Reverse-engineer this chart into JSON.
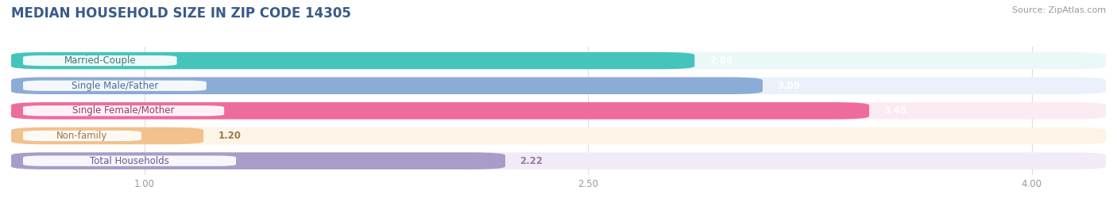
{
  "title": "MEDIAN HOUSEHOLD SIZE IN ZIP CODE 14305",
  "source": "Source: ZipAtlas.com",
  "categories": [
    "Married-Couple",
    "Single Male/Father",
    "Single Female/Mother",
    "Non-family",
    "Total Households"
  ],
  "values": [
    2.86,
    3.09,
    3.45,
    1.2,
    2.22
  ],
  "bar_colors": [
    "#45C4BC",
    "#8BACD6",
    "#EE6B9E",
    "#F2C18C",
    "#A99CC8"
  ],
  "bar_bg_colors": [
    "#EAF8F7",
    "#EBF1FA",
    "#FCEAF3",
    "#FDF4E8",
    "#F1EBF8"
  ],
  "value_colors": [
    "white",
    "white",
    "white",
    "#9B7A4A",
    "#9B7A9B"
  ],
  "label_text_colors": [
    "#3A7A78",
    "#4A6A9A",
    "#9A3A68",
    "#9B7A4A",
    "#6A5A9A"
  ],
  "xmin": 0.55,
  "xmax": 4.25,
  "xticks": [
    1.0,
    2.5,
    4.0
  ],
  "xticklabels": [
    "1.00",
    "2.50",
    "4.00"
  ],
  "title_fontsize": 12,
  "label_fontsize": 8.5,
  "value_fontsize": 8.5,
  "source_fontsize": 8,
  "background_color": "#ffffff",
  "bar_height": 0.68,
  "bar_gap": 0.32
}
